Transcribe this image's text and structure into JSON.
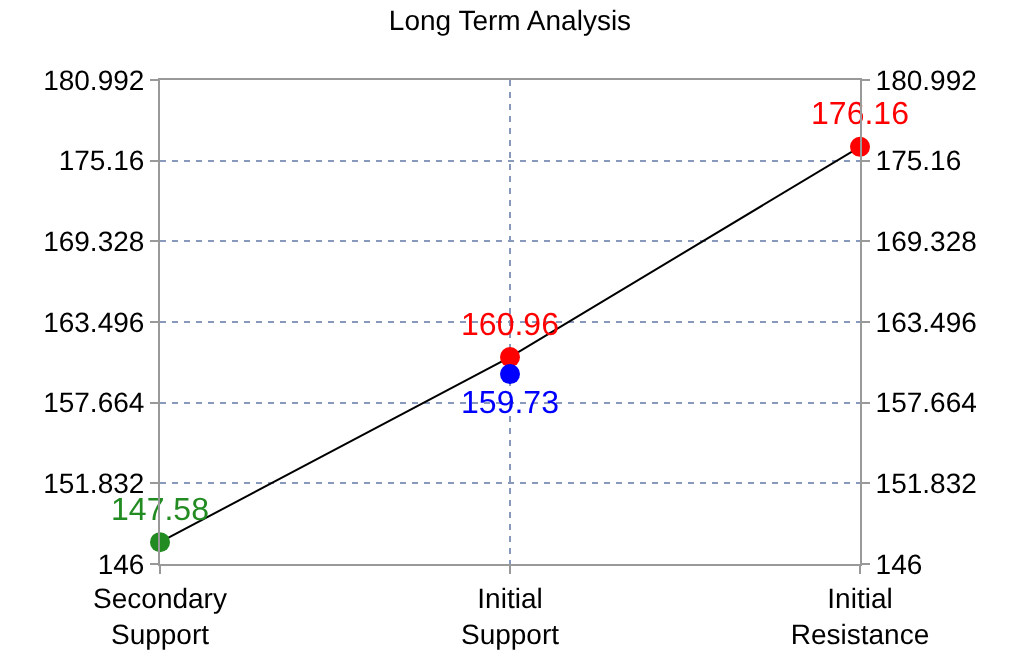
{
  "chart_data": {
    "type": "line",
    "title": "Long Term Analysis",
    "categories": [
      "Secondary\nSupport",
      "Initial\nSupport",
      "Initial\nResistance"
    ],
    "series": [
      {
        "color": "#000000",
        "colors": [
          "#228b22",
          "#ff0000",
          "#ff0000"
        ],
        "values": [
          147.58,
          160.96,
          176.16
        ]
      },
      {
        "type": "scatter",
        "color": "#0000ff",
        "x": [
          "Initial\nSupport"
        ],
        "values": [
          159.73
        ]
      }
    ],
    "ylim": [
      146,
      180.992
    ],
    "yticks": [
      146,
      151.832,
      157.664,
      163.496,
      169.328,
      175.16,
      180.992
    ],
    "y2lim": [
      146,
      180.992
    ],
    "y2ticks": [
      146,
      151.832,
      157.664,
      163.496,
      169.328,
      175.16,
      180.992
    ],
    "grid": true,
    "data_labels": true,
    "marker": "circle",
    "line_style": "solid"
  }
}
